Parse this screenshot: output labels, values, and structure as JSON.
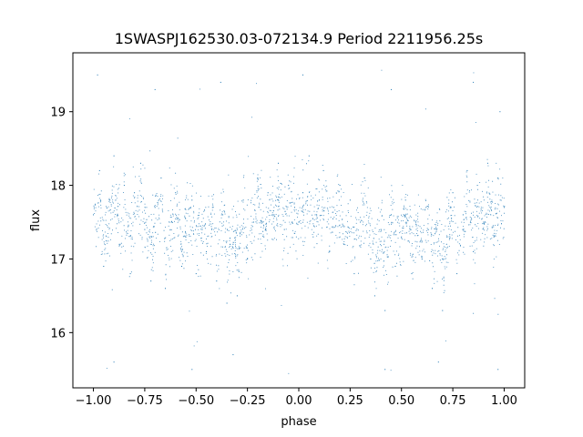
{
  "chart_data": {
    "type": "scatter",
    "title": "1SWASPJ162530.03-072134.9 Period 2211956.25s",
    "xlabel": "phase",
    "ylabel": "flux",
    "xlim": [
      -1.1,
      1.1
    ],
    "ylim": [
      15.25,
      19.8
    ],
    "grid": false,
    "legend": "none",
    "marker_color": "#1f77b4",
    "x_ticks": [
      {
        "value": -1.0,
        "label": "−1.00"
      },
      {
        "value": -0.75,
        "label": "−0.75"
      },
      {
        "value": -0.5,
        "label": "−0.50"
      },
      {
        "value": -0.25,
        "label": "−0.25"
      },
      {
        "value": 0.0,
        "label": "0.00"
      },
      {
        "value": 0.25,
        "label": "0.25"
      },
      {
        "value": 0.5,
        "label": "0.50"
      },
      {
        "value": 0.75,
        "label": "0.75"
      },
      {
        "value": 1.0,
        "label": "1.00"
      }
    ],
    "y_ticks": [
      {
        "value": 16,
        "label": "16"
      },
      {
        "value": 17,
        "label": "17"
      },
      {
        "value": 18,
        "label": "18"
      },
      {
        "value": 19,
        "label": "19"
      }
    ],
    "series": [
      {
        "x_range": [
          -1.0,
          1.0
        ],
        "mean_flux": 17.5,
        "core_range": [
          16.8,
          18.3
        ],
        "outlier_range": [
          15.4,
          19.6
        ],
        "points": [
          [
            -1.0,
            17.6
          ],
          [
            -0.97,
            18.2
          ],
          [
            -0.95,
            16.9
          ],
          [
            -0.92,
            17.8
          ],
          [
            -0.9,
            18.4
          ],
          [
            -0.87,
            17.2
          ],
          [
            -0.85,
            18.0
          ],
          [
            -0.82,
            16.8
          ],
          [
            -0.8,
            17.9
          ],
          [
            -0.77,
            18.3
          ],
          [
            -0.75,
            17.4
          ],
          [
            -0.72,
            16.7
          ],
          [
            -0.7,
            17.7
          ],
          [
            -0.67,
            18.1
          ],
          [
            -0.65,
            16.6
          ],
          [
            -0.62,
            17.5
          ],
          [
            -0.6,
            17.9
          ],
          [
            -0.57,
            16.9
          ],
          [
            -0.55,
            17.3
          ],
          [
            -0.52,
            17.8
          ],
          [
            -0.5,
            16.8
          ],
          [
            -0.47,
            17.4
          ],
          [
            -0.45,
            17.1
          ],
          [
            -0.42,
            17.7
          ],
          [
            -0.4,
            16.7
          ],
          [
            -0.37,
            17.6
          ],
          [
            -0.35,
            16.4
          ],
          [
            -0.32,
            17.2
          ],
          [
            -0.3,
            16.5
          ],
          [
            -0.27,
            17.8
          ],
          [
            -0.25,
            17.0
          ],
          [
            -0.22,
            17.5
          ],
          [
            -0.2,
            18.1
          ],
          [
            -0.17,
            17.3
          ],
          [
            -0.15,
            17.9
          ],
          [
            -0.12,
            17.6
          ],
          [
            -0.1,
            18.3
          ],
          [
            -0.07,
            17.4
          ],
          [
            -0.05,
            18.0
          ],
          [
            -0.02,
            17.7
          ],
          [
            0.0,
            17.5
          ],
          [
            0.02,
            17.9
          ],
          [
            0.05,
            18.4
          ],
          [
            0.07,
            17.3
          ],
          [
            0.1,
            17.8
          ],
          [
            0.12,
            18.2
          ],
          [
            0.15,
            17.1
          ],
          [
            0.17,
            17.7
          ],
          [
            0.2,
            18.0
          ],
          [
            0.22,
            17.2
          ],
          [
            0.25,
            17.8
          ],
          [
            0.27,
            16.8
          ],
          [
            0.3,
            17.5
          ],
          [
            0.32,
            18.1
          ],
          [
            0.35,
            17.0
          ],
          [
            0.37,
            16.5
          ],
          [
            0.4,
            17.4
          ],
          [
            0.42,
            16.3
          ],
          [
            0.45,
            17.6
          ],
          [
            0.47,
            16.9
          ],
          [
            0.5,
            17.3
          ],
          [
            0.52,
            17.8
          ],
          [
            0.55,
            16.8
          ],
          [
            0.57,
            17.5
          ],
          [
            0.6,
            17.0
          ],
          [
            0.62,
            17.7
          ],
          [
            0.65,
            16.6
          ],
          [
            0.67,
            17.4
          ],
          [
            0.7,
            16.3
          ],
          [
            0.72,
            17.2
          ],
          [
            0.75,
            17.9
          ],
          [
            0.77,
            16.8
          ],
          [
            0.8,
            17.6
          ],
          [
            0.82,
            18.2
          ],
          [
            0.85,
            17.1
          ],
          [
            0.87,
            18.0
          ],
          [
            0.9,
            17.5
          ],
          [
            0.92,
            18.3
          ],
          [
            0.95,
            17.3
          ],
          [
            0.97,
            18.1
          ],
          [
            1.0,
            17.7
          ],
          [
            -0.98,
            19.5
          ],
          [
            -0.7,
            19.3
          ],
          [
            -0.38,
            19.4
          ],
          [
            0.02,
            19.5
          ],
          [
            0.45,
            19.3
          ],
          [
            0.85,
            19.4
          ],
          [
            0.98,
            19.0
          ],
          [
            -0.9,
            15.6
          ],
          [
            -0.52,
            15.5
          ],
          [
            -0.32,
            15.7
          ],
          [
            0.42,
            15.5
          ],
          [
            0.68,
            15.6
          ],
          [
            0.97,
            15.5
          ]
        ]
      }
    ]
  }
}
